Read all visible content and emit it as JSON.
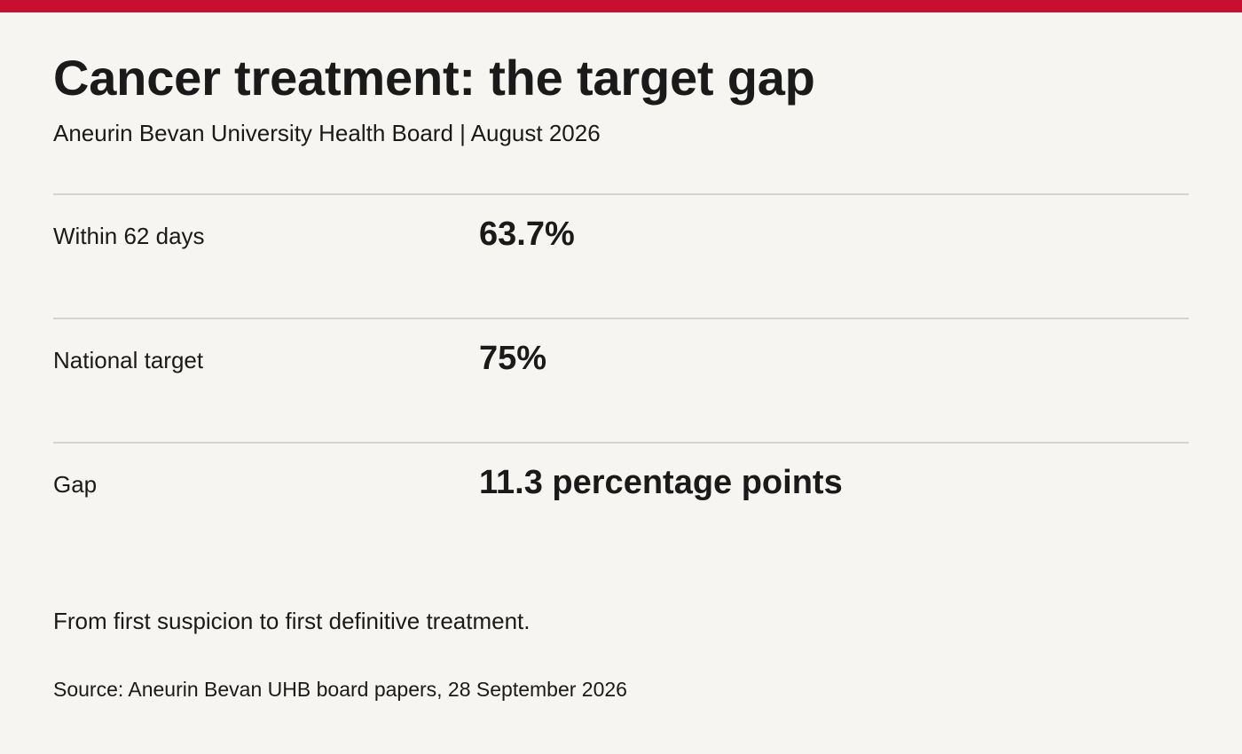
{
  "header": {
    "title": "Cancer treatment: the target gap",
    "subtitle": "Aneurin Bevan University Health Board | August 2026"
  },
  "stats": [
    {
      "label": "Within 62 days",
      "value": "63.7%"
    },
    {
      "label": "National target",
      "value": "75%"
    },
    {
      "label": "Gap",
      "value": "11.3 percentage points"
    }
  ],
  "footer": {
    "note": "From first suspicion to first definitive treatment.",
    "source": "Source: Aneurin Bevan UHB board papers, 28 September 2026"
  },
  "colors": {
    "accent_bar": "#c8102e",
    "background": "#f6f5f1",
    "text": "#1a1a1a",
    "divider": "#d5d3cd"
  }
}
